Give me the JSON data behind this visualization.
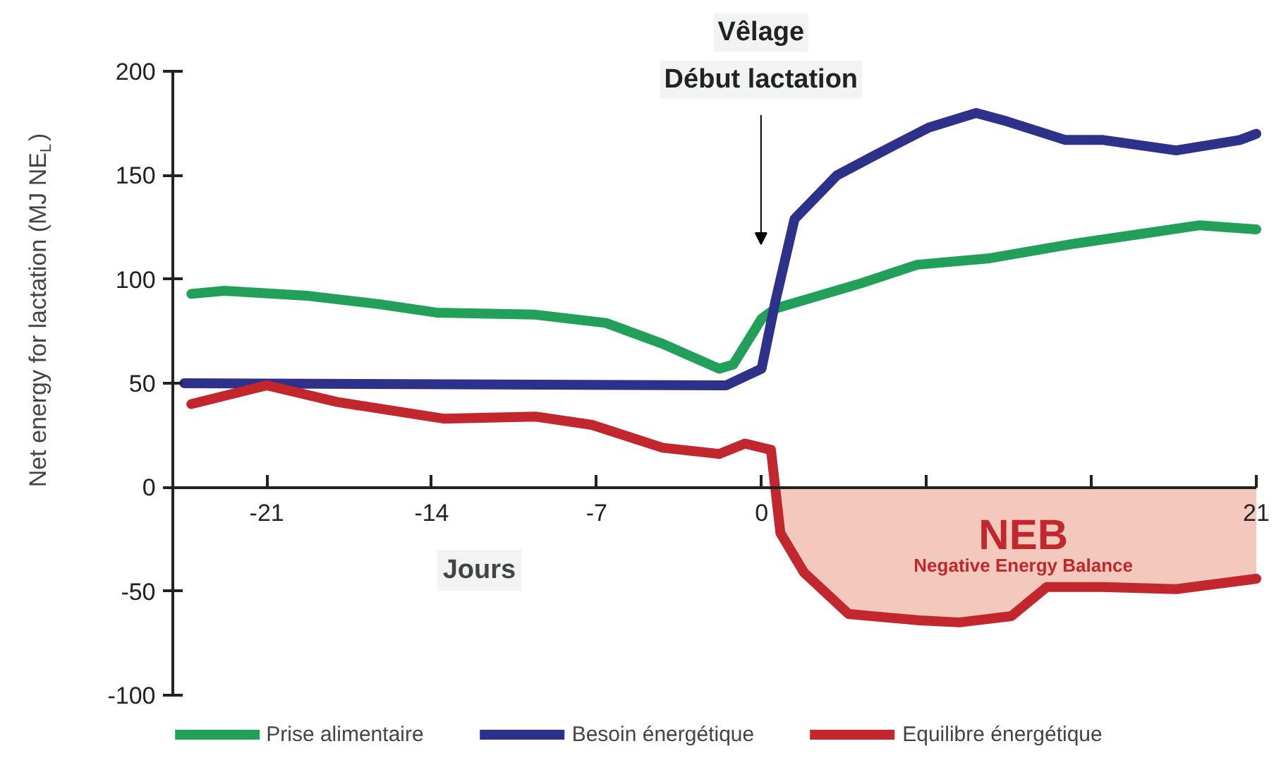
{
  "chart_data": {
    "type": "line",
    "ylabel": "Net energy for lactation (MJ NE$_{L}$)",
    "xlabel": "Jours",
    "xlim": [
      -25,
      21
    ],
    "xticks": [
      -21,
      -14,
      -7,
      0,
      {
        "value": 7,
        "label": null
      },
      {
        "value": 14,
        "label": null
      },
      21
    ],
    "ylim": [
      -100,
      200
    ],
    "yticks": [
      -100,
      -50,
      0,
      50,
      100,
      150,
      200
    ],
    "grid": false,
    "legend": "bottom",
    "line_style": "solid",
    "marker": "none",
    "series": [
      {
        "type": "area",
        "color": "#f2c9bc",
        "x": [
          0.8,
          1.8,
          3.7,
          6.7,
          8.4,
          10.6,
          12.1,
          14.5,
          17.6,
          21
        ],
        "values": [
          -22,
          -41,
          -61,
          -64,
          -65,
          -62,
          -48,
          -48,
          -49,
          -44
        ]
      },
      {
        "name": "Prise alimentaire",
        "color": "#22a05a",
        "x": [
          -24.2,
          -22.8,
          -19.2,
          -16.2,
          -13.8,
          -9.6,
          -6.6,
          -4.2,
          -1.8,
          -1.2,
          0,
          0.6,
          4.2,
          6.6,
          9.6,
          13.2,
          16.2,
          18.6,
          21
        ],
        "values": [
          93,
          94.5,
          92,
          88,
          84,
          83,
          79,
          69,
          57,
          59,
          81,
          86,
          98,
          107,
          110,
          117,
          122,
          126,
          124
        ]
      },
      {
        "name": "Besoin énergétique",
        "color": "#2e3189",
        "x": [
          -24.5,
          -1.5,
          0,
          0.6,
          1.4,
          3.2,
          4.7,
          7.1,
          9.1,
          10.4,
          12.9,
          14.5,
          17.6,
          20.3,
          21
        ],
        "values": [
          50,
          49,
          57,
          90,
          129,
          150,
          159,
          173,
          180,
          176,
          167,
          167,
          162,
          167,
          170
        ]
      },
      {
        "name": "Equilibre énergétique",
        "color": "#c1272d",
        "x": [
          -24.2,
          -21,
          -18,
          -13.5,
          -9.6,
          -7.2,
          -4.2,
          -1.8,
          -0.7,
          0.4,
          0.8,
          1.8,
          3.7,
          6.7,
          8.4,
          10.6,
          12.1,
          14.5,
          17.6,
          21
        ],
        "values": [
          40,
          49,
          41,
          33,
          34,
          30,
          19,
          16,
          21,
          18,
          -22,
          -41,
          -61,
          -64,
          -65,
          -62,
          -48,
          -48,
          -49,
          -44
        ]
      }
    ],
    "annotations": [
      "Vêlage\nDébut lactation",
      "NEB",
      "Negative Energy Balance"
    ]
  }
}
